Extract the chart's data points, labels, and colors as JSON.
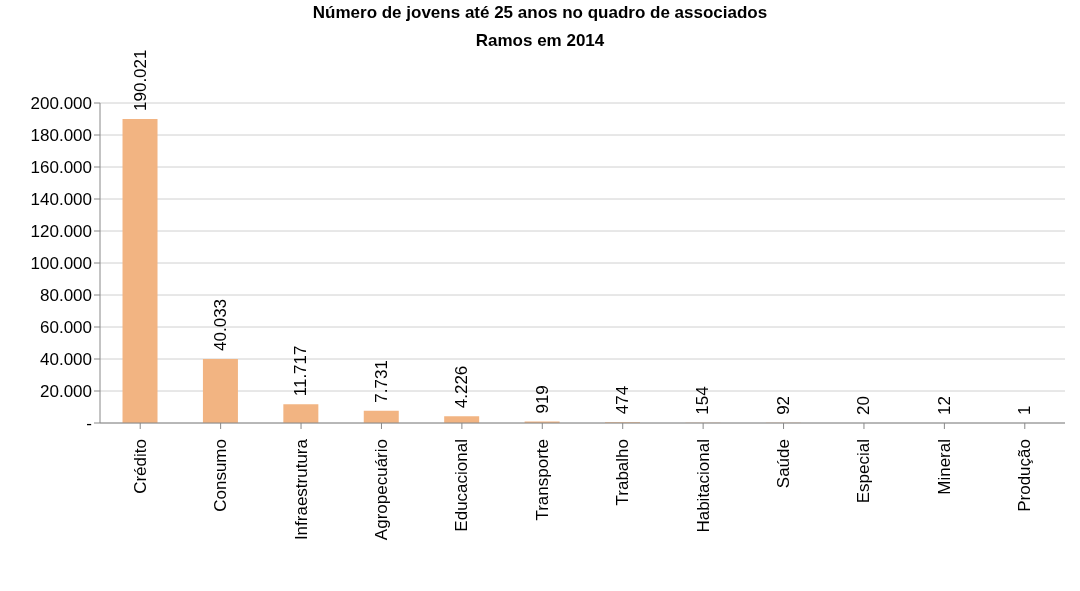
{
  "chart_data": {
    "type": "bar",
    "title": "Número de jovens até 25 anos no quadro de associados",
    "subtitle": "Ramos em 2014",
    "categories": [
      "Crédito",
      "Consumo",
      "Infraestrutura",
      "Agropecuário",
      "Educacional",
      "Transporte",
      "Trabalho",
      "Habitacional",
      "Saúde",
      "Especial",
      "Mineral",
      "Produção"
    ],
    "values": [
      190021,
      40033,
      11717,
      7731,
      4226,
      919,
      474,
      154,
      92,
      20,
      12,
      1
    ],
    "value_labels": [
      "190.021",
      "40.033",
      "11.717",
      "7.731",
      "4.226",
      "919",
      "474",
      "154",
      "92",
      "20",
      "12",
      "1"
    ],
    "color": "#f2b482",
    "ylim": [
      0,
      200000
    ],
    "yticks": [
      {
        "value": 0,
        "label": "-"
      },
      {
        "value": 20000,
        "label": "20.000"
      },
      {
        "value": 40000,
        "label": "40.000"
      },
      {
        "value": 60000,
        "label": "60.000"
      },
      {
        "value": 80000,
        "label": "80.000"
      },
      {
        "value": 100000,
        "label": "100.000"
      },
      {
        "value": 120000,
        "label": "120.000"
      },
      {
        "value": 140000,
        "label": "140.000"
      },
      {
        "value": 160000,
        "label": "160.000"
      },
      {
        "value": 180000,
        "label": "180.000"
      },
      {
        "value": 200000,
        "label": "200.000"
      }
    ],
    "grid": "y"
  }
}
